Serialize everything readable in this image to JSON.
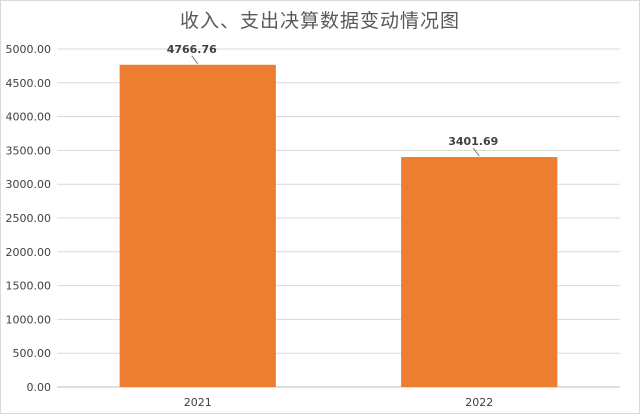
{
  "chart_data": {
    "type": "bar",
    "title": "收入、支出决算数据变动情况图",
    "categories": [
      "2021",
      "2022"
    ],
    "values": [
      4766.76,
      3401.69
    ],
    "data_labels": [
      "4766.76",
      "3401.69"
    ],
    "xlabel": "",
    "ylabel": "",
    "ylim": [
      0,
      5000
    ],
    "yticks": [
      "0.00",
      "500.00",
      "1000.00",
      "1500.00",
      "2000.00",
      "2500.00",
      "3000.00",
      "3500.00",
      "4000.00",
      "4500.00",
      "5000.00"
    ],
    "grid": true,
    "legend": "none",
    "colors": {
      "bar": "#ed7d31",
      "grid": "#d9d9d9",
      "axis": "#bfbfbf",
      "text": "#404040",
      "title": "#595959"
    }
  }
}
